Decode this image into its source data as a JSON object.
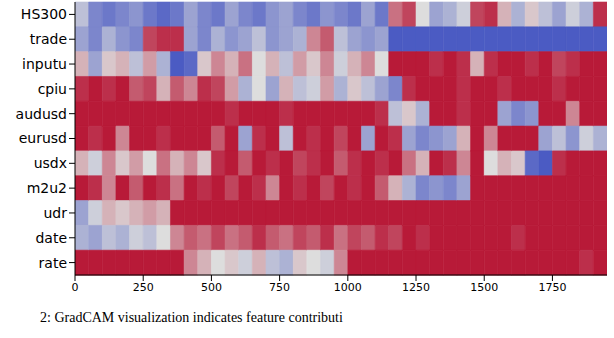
{
  "chart_data": {
    "type": "heatmap",
    "caption": "2: GradCAM visualization indicates feature contributi",
    "rows": [
      "HS300",
      "trade",
      "inputu",
      "cpiu",
      "audusd",
      "eurusd",
      "usdx",
      "m2u2",
      "udr",
      "date",
      "rate"
    ],
    "bins": [
      0,
      50,
      100,
      150,
      200,
      250,
      300,
      350,
      400,
      450,
      500,
      550,
      600,
      650,
      700,
      750,
      800,
      850,
      900,
      950,
      1000,
      1050,
      1100,
      1150,
      1200,
      1250,
      1300,
      1350,
      1400,
      1450,
      1500,
      1550,
      1600,
      1650,
      1700,
      1750,
      1800,
      1850,
      1900,
      1950
    ],
    "xlim": [
      0,
      1950
    ],
    "xticks": [
      0,
      250,
      500,
      750,
      1000,
      1250,
      1500,
      1750
    ],
    "color_range": [
      0,
      1
    ],
    "cells": [
      [
        0.4,
        0.2,
        0.15,
        0.2,
        0.25,
        0.15,
        0.1,
        0.15,
        0.3,
        0.2,
        0.15,
        0.3,
        0.2,
        0.15,
        0.25,
        0.3,
        0.2,
        0.15,
        0.25,
        0.2,
        0.15,
        0.3,
        0.15,
        0.75,
        0.85,
        0.5,
        0.3,
        0.35,
        0.45,
        0.85,
        0.9,
        0.6,
        0.35,
        0.55,
        0.4,
        0.3,
        0.45,
        0.35,
        0.9
      ],
      [
        0.3,
        0.2,
        0.35,
        0.25,
        0.2,
        0.85,
        0.9,
        0.9,
        0.3,
        0.2,
        0.35,
        0.25,
        0.3,
        0.4,
        0.25,
        0.3,
        0.35,
        0.7,
        0.8,
        0.4,
        0.3,
        0.25,
        0.3,
        0.05,
        0.05,
        0.05,
        0.05,
        0.05,
        0.05,
        0.05,
        0.05,
        0.05,
        0.05,
        0.05,
        0.05,
        0.05,
        0.05,
        0.05,
        0.05
      ],
      [
        0.6,
        0.3,
        0.55,
        0.6,
        0.4,
        0.65,
        0.35,
        0.05,
        0.1,
        0.55,
        0.7,
        0.6,
        0.75,
        0.5,
        0.6,
        0.4,
        0.65,
        0.55,
        0.7,
        0.45,
        0.6,
        0.7,
        0.5,
        0.95,
        0.95,
        0.95,
        0.9,
        0.95,
        0.9,
        0.6,
        0.9,
        0.95,
        0.95,
        0.9,
        0.95,
        0.85,
        0.9,
        0.95,
        0.95
      ],
      [
        0.9,
        0.95,
        0.9,
        0.95,
        0.8,
        0.85,
        0.6,
        0.8,
        0.7,
        0.9,
        0.85,
        0.65,
        0.35,
        0.5,
        0.3,
        0.6,
        0.4,
        0.45,
        0.65,
        0.35,
        0.55,
        0.4,
        0.3,
        0.2,
        0.9,
        0.95,
        0.95,
        0.95,
        0.9,
        0.95,
        0.95,
        0.9,
        0.95,
        0.95,
        0.95,
        0.9,
        0.95,
        0.95,
        0.95
      ],
      [
        0.95,
        0.95,
        0.95,
        0.95,
        0.95,
        0.95,
        0.95,
        0.95,
        0.95,
        0.95,
        0.95,
        0.9,
        0.95,
        0.95,
        0.95,
        0.9,
        0.95,
        0.95,
        0.95,
        0.95,
        0.95,
        0.95,
        0.9,
        0.4,
        0.55,
        0.35,
        0.95,
        0.95,
        0.9,
        0.95,
        0.95,
        0.3,
        0.2,
        0.25,
        0.95,
        0.95,
        0.7,
        0.95,
        0.95
      ],
      [
        0.95,
        0.9,
        0.95,
        0.7,
        0.95,
        0.95,
        0.9,
        0.95,
        0.95,
        0.95,
        0.8,
        0.95,
        0.3,
        0.9,
        0.95,
        0.4,
        0.95,
        0.9,
        0.95,
        0.85,
        0.95,
        0.3,
        0.95,
        0.9,
        0.3,
        0.2,
        0.25,
        0.3,
        0.6,
        0.95,
        0.7,
        0.95,
        0.95,
        0.95,
        0.3,
        0.4,
        0.25,
        0.45,
        0.35
      ],
      [
        0.6,
        0.45,
        0.7,
        0.55,
        0.65,
        0.5,
        0.75,
        0.6,
        0.7,
        0.55,
        0.9,
        0.95,
        0.8,
        0.95,
        0.9,
        0.95,
        0.85,
        0.9,
        0.95,
        0.8,
        0.9,
        0.95,
        0.9,
        0.95,
        0.75,
        0.6,
        0.95,
        0.9,
        0.7,
        0.95,
        0.5,
        0.6,
        0.55,
        0.1,
        0.05,
        0.9,
        0.95,
        0.95,
        0.95
      ],
      [
        0.95,
        0.9,
        0.7,
        0.95,
        0.8,
        0.95,
        0.9,
        0.75,
        0.95,
        0.9,
        0.95,
        0.85,
        0.95,
        0.9,
        0.7,
        0.95,
        0.9,
        0.95,
        0.85,
        0.95,
        0.9,
        0.95,
        0.8,
        0.6,
        0.35,
        0.2,
        0.25,
        0.2,
        0.3,
        0.95,
        0.95,
        0.95,
        0.95,
        0.95,
        0.95,
        0.95,
        0.95,
        0.95,
        0.95
      ],
      [
        0.3,
        0.45,
        0.6,
        0.55,
        0.6,
        0.65,
        0.6,
        0.95,
        0.95,
        0.95,
        0.95,
        0.95,
        0.95,
        0.95,
        0.95,
        0.95,
        0.95,
        0.95,
        0.95,
        0.95,
        0.95,
        0.95,
        0.95,
        0.95,
        0.95,
        0.95,
        0.95,
        0.95,
        0.95,
        0.95,
        0.95,
        0.95,
        0.95,
        0.95,
        0.95,
        0.95,
        0.95,
        0.95,
        0.95
      ],
      [
        0.35,
        0.3,
        0.4,
        0.35,
        0.45,
        0.4,
        0.5,
        0.7,
        0.8,
        0.75,
        0.85,
        0.75,
        0.8,
        0.9,
        0.8,
        0.75,
        0.85,
        0.8,
        0.9,
        0.75,
        0.85,
        0.8,
        0.9,
        0.85,
        0.95,
        0.9,
        0.95,
        0.95,
        0.95,
        0.95,
        0.95,
        0.95,
        0.9,
        0.95,
        0.95,
        0.95,
        0.95,
        0.95,
        0.95
      ],
      [
        0.95,
        0.95,
        0.95,
        0.95,
        0.95,
        0.95,
        0.95,
        0.95,
        0.7,
        0.6,
        0.5,
        0.55,
        0.45,
        0.6,
        0.4,
        0.35,
        0.55,
        0.5,
        0.45,
        0.7,
        0.95,
        0.95,
        0.95,
        0.95,
        0.95,
        0.95,
        0.95,
        0.95,
        0.95,
        0.95,
        0.95,
        0.95,
        0.95,
        0.95,
        0.95,
        0.95,
        0.95,
        0.9,
        0.95
      ]
    ]
  }
}
